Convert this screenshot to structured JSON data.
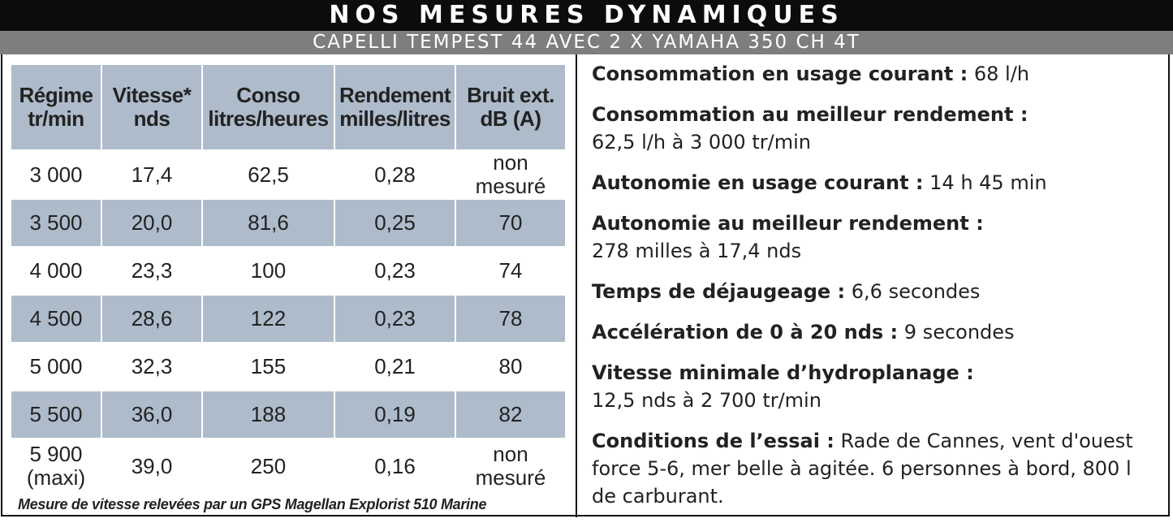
{
  "header": {
    "title": "NOS MESURES DYNAMIQUES",
    "subtitle": "CAPELLI TEMPEST 44 AVEC 2 X YAMAHA 350 CH 4T"
  },
  "table": {
    "columns": [
      {
        "line1": "Régime",
        "line2": "tr/min"
      },
      {
        "line1": "Vitesse*",
        "line2": "nds"
      },
      {
        "line1": "Conso",
        "line2": "litres/heures"
      },
      {
        "line1": "Rendement",
        "line2": "milles/litres"
      },
      {
        "line1": "Bruit ext.",
        "line2": "dB (A)"
      }
    ],
    "rows": [
      {
        "regime": "3 000",
        "regime2": "",
        "vitesse": "17,4",
        "conso": "62,5",
        "rendement": "0,28",
        "bruit": "non",
        "bruit2": "mesuré"
      },
      {
        "regime": "3 500",
        "regime2": "",
        "vitesse": "20,0",
        "conso": "81,6",
        "rendement": "0,25",
        "bruit": "70",
        "bruit2": ""
      },
      {
        "regime": "4 000",
        "regime2": "",
        "vitesse": "23,3",
        "conso": "100",
        "rendement": "0,23",
        "bruit": "74",
        "bruit2": ""
      },
      {
        "regime": "4 500",
        "regime2": "",
        "vitesse": "28,6",
        "conso": "122",
        "rendement": "0,23",
        "bruit": "78",
        "bruit2": ""
      },
      {
        "regime": "5 000",
        "regime2": "",
        "vitesse": "32,3",
        "conso": "155",
        "rendement": "0,21",
        "bruit": "80",
        "bruit2": ""
      },
      {
        "regime": "5 500",
        "regime2": "",
        "vitesse": "36,0",
        "conso": "188",
        "rendement": "0,19",
        "bruit": "82",
        "bruit2": ""
      },
      {
        "regime": "5 900",
        "regime2": "(maxi)",
        "vitesse": "39,0",
        "conso": "250",
        "rendement": "0,16",
        "bruit": "non",
        "bruit2": "mesuré"
      }
    ],
    "footnote": "Mesure de vitesse relevées par un GPS Magellan Explorist 510 Marine"
  },
  "specs": [
    {
      "label": "Consommation en usage courant :",
      "value": " 68 l/h"
    },
    {
      "label": "Consommation au meilleur rendement :",
      "value": "62,5 l/h à 3 000 tr/min",
      "block": true
    },
    {
      "label": "Autonomie en usage courant :",
      "value": " 14 h 45 min"
    },
    {
      "label": "Autonomie au meilleur rendement :",
      "value": "278 milles à 17,4 nds",
      "block": true
    },
    {
      "label": "Temps de déjaugeage :",
      "value": " 6,6 secondes"
    },
    {
      "label": "Accélération de 0 à 20 nds :",
      "value": " 9 secondes"
    },
    {
      "label": "Vitesse minimale d’hydroplanage :",
      "value": "12,5 nds à 2 700 tr/min",
      "block": true
    },
    {
      "label": "Conditions de l’essai :",
      "value": " Rade de Cannes, vent d'ouest force 5-6, mer belle à agitée. 6 personnes à bord, 800 l de carburant."
    }
  ],
  "colors": {
    "shade": "#aebbcb",
    "title_bg": "#0c0c0c",
    "subtitle_bg": "#7e7e7e"
  }
}
